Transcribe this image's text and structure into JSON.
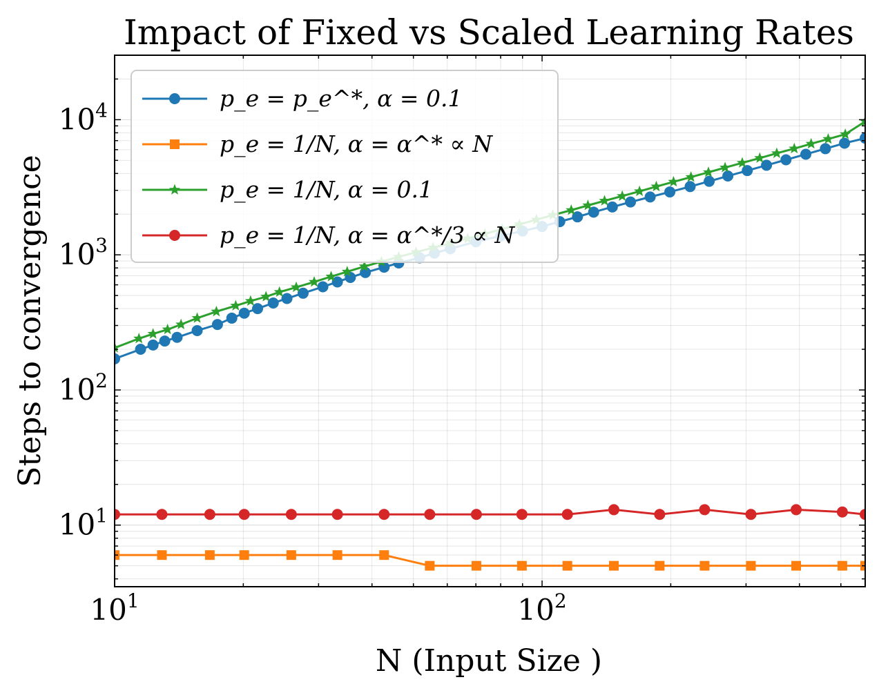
{
  "chart_data": {
    "type": "line",
    "title": "Impact of Fixed vs Scaled Learning Rates",
    "xlabel": "N (Input Size )",
    "ylabel": "Steps to convergence",
    "xscale": "log",
    "yscale": "log",
    "xlim": [
      10,
      570
    ],
    "ylim": [
      3.5,
      30000
    ],
    "grid": "both (major and minor)",
    "legend_position": "top-left",
    "x_ticks": [
      {
        "value": 10,
        "label": "10^1"
      },
      {
        "value": 100,
        "label": "10^2"
      }
    ],
    "y_ticks": [
      {
        "value": 10,
        "label": "10^1"
      },
      {
        "value": 100,
        "label": "10^2"
      },
      {
        "value": 1000,
        "label": "10^3"
      },
      {
        "value": 10000,
        "label": "10^4"
      }
    ],
    "series": [
      {
        "name": "p_e = p_e^*, α = 0.1",
        "color": "#1f77b4",
        "marker": "circle",
        "x": [
          10,
          11.5,
          12.3,
          13.1,
          14,
          15.6,
          17.4,
          18.8,
          20.1,
          21.6,
          23.5,
          25.3,
          27.6,
          30.7,
          33.2,
          35.6,
          38.6,
          42.7,
          46.2,
          51.7,
          56,
          61,
          70,
          80,
          90,
          100,
          110,
          121,
          132,
          146,
          161,
          179,
          199,
          222,
          246,
          272,
          302,
          335,
          372,
          414,
          460,
          510,
          570
        ],
        "y": [
          170,
          200,
          215,
          230,
          245,
          275,
          305,
          340,
          370,
          400,
          440,
          475,
          520,
          580,
          630,
          680,
          740,
          810,
          870,
          950,
          1030,
          1110,
          1250,
          1380,
          1500,
          1620,
          1760,
          1910,
          2070,
          2260,
          2460,
          2680,
          2920,
          3200,
          3500,
          3830,
          4200,
          4600,
          5050,
          5550,
          6100,
          6700,
          7300
        ]
      },
      {
        "name": "p_e = 1/N, α = α^* ∝ N",
        "color": "#ff7f0e",
        "marker": "square",
        "x": [
          10,
          12.9,
          16.7,
          20.1,
          25.9,
          33.2,
          42.7,
          54.6,
          70.2,
          89.7,
          114.6,
          147.2,
          188.4,
          240,
          308,
          393,
          504,
          570
        ],
        "y": [
          6,
          6,
          6,
          6,
          6,
          6,
          6,
          5,
          5,
          5,
          5,
          5,
          5,
          5,
          5,
          5,
          5,
          5
        ]
      },
      {
        "name": "p_e = 1/N, α = 0.1",
        "color": "#2ca02c",
        "marker": "star",
        "x": [
          10,
          11.4,
          12.3,
          13.3,
          14.3,
          15.6,
          17.3,
          19.2,
          20.8,
          22.6,
          24.3,
          26.6,
          29.3,
          32.1,
          35,
          38.4,
          42.1,
          46.2,
          50.7,
          55.6,
          61,
          67,
          73.5,
          80.6,
          88.5,
          97,
          106,
          117,
          128,
          140,
          154,
          169,
          185,
          203,
          223,
          245,
          268,
          294,
          323,
          354,
          389,
          426,
          467,
          512,
          570
        ],
        "y": [
          205,
          240,
          260,
          280,
          305,
          340,
          380,
          420,
          455,
          490,
          530,
          575,
          630,
          690,
          750,
          820,
          890,
          965,
          1045,
          1130,
          1220,
          1320,
          1430,
          1550,
          1680,
          1820,
          1970,
          2140,
          2320,
          2510,
          2720,
          2950,
          3200,
          3470,
          3760,
          4080,
          4420,
          4790,
          5200,
          5640,
          6110,
          6630,
          7190,
          7800,
          9700
        ]
      },
      {
        "name": "p_e = 1/N, α = α^*/3 ∝ N",
        "color": "#d62728",
        "marker": "circle",
        "x": [
          10,
          12.9,
          16.7,
          20.1,
          25.9,
          33.2,
          42.7,
          54.6,
          70.2,
          89.7,
          114.6,
          147.2,
          188.4,
          240,
          308,
          393,
          504,
          570
        ],
        "y": [
          12,
          12,
          12,
          12,
          12,
          12,
          12,
          12,
          12,
          12,
          12,
          13,
          12,
          13,
          12,
          13,
          12.5,
          12
        ]
      }
    ]
  }
}
